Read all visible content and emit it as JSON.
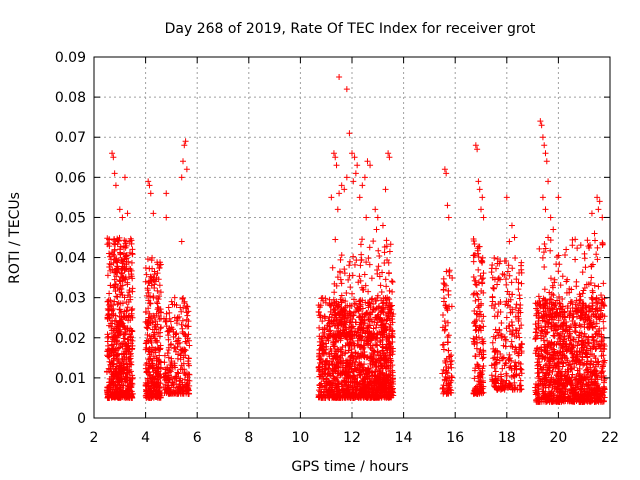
{
  "chart_data": {
    "type": "scatter",
    "title": "Day 268 of 2019, Rate Of TEC Index for receiver grot",
    "xlabel": "GPS time / hours",
    "ylabel": "ROTI / TECUs",
    "xlim": [
      2,
      22
    ],
    "ylim": [
      0,
      0.09
    ],
    "xticks": [
      "2",
      "4",
      "6",
      "8",
      "10",
      "12",
      "14",
      "16",
      "18",
      "20",
      "22"
    ],
    "yticks": [
      "0",
      "0.01",
      "0.02",
      "0.03",
      "0.04",
      "0.05",
      "0.06",
      "0.07",
      "0.08",
      "0.09"
    ],
    "grid": true,
    "marker": "+",
    "color": "#ff0000",
    "clusters": [
      {
        "x_range": [
          2.5,
          3.5
        ],
        "y_range": [
          0.005,
          0.045
        ],
        "n": 650,
        "seed": 11
      },
      {
        "x_range": [
          4.0,
          4.6
        ],
        "y_range": [
          0.005,
          0.04
        ],
        "n": 320,
        "seed": 12
      },
      {
        "x_range": [
          4.7,
          5.7
        ],
        "y_range": [
          0.006,
          0.03
        ],
        "n": 260,
        "seed": 13
      },
      {
        "x_range": [
          10.7,
          13.6
        ],
        "y_range": [
          0.005,
          0.03
        ],
        "n": 1300,
        "seed": 14
      },
      {
        "x_range": [
          11.2,
          13.6
        ],
        "y_range": [
          0.02,
          0.045
        ],
        "n": 200,
        "seed": 15
      },
      {
        "x_range": [
          15.5,
          15.9
        ],
        "y_range": [
          0.006,
          0.038
        ],
        "n": 90,
        "seed": 16
      },
      {
        "x_range": [
          16.7,
          17.1
        ],
        "y_range": [
          0.006,
          0.045
        ],
        "n": 160,
        "seed": 17
      },
      {
        "x_range": [
          17.4,
          18.6
        ],
        "y_range": [
          0.007,
          0.04
        ],
        "n": 260,
        "seed": 18
      },
      {
        "x_range": [
          19.1,
          21.8
        ],
        "y_range": [
          0.004,
          0.03
        ],
        "n": 1100,
        "seed": 19
      },
      {
        "x_range": [
          19.1,
          21.8
        ],
        "y_range": [
          0.025,
          0.045
        ],
        "n": 140,
        "seed": 20
      }
    ],
    "points": [
      [
        2.7,
        0.066
      ],
      [
        2.75,
        0.065
      ],
      [
        2.8,
        0.061
      ],
      [
        2.85,
        0.058
      ],
      [
        3.0,
        0.052
      ],
      [
        3.1,
        0.05
      ],
      [
        3.2,
        0.06
      ],
      [
        3.3,
        0.051
      ],
      [
        4.1,
        0.059
      ],
      [
        4.15,
        0.058
      ],
      [
        4.2,
        0.056
      ],
      [
        4.3,
        0.051
      ],
      [
        4.8,
        0.056
      ],
      [
        4.8,
        0.05
      ],
      [
        5.4,
        0.06
      ],
      [
        5.5,
        0.068
      ],
      [
        5.55,
        0.069
      ],
      [
        5.45,
        0.064
      ],
      [
        5.6,
        0.062
      ],
      [
        5.4,
        0.044
      ],
      [
        11.5,
        0.085
      ],
      [
        11.8,
        0.082
      ],
      [
        11.9,
        0.071
      ],
      [
        11.3,
        0.066
      ],
      [
        11.35,
        0.065
      ],
      [
        11.4,
        0.063
      ],
      [
        12.0,
        0.066
      ],
      [
        12.1,
        0.065
      ],
      [
        12.2,
        0.063
      ],
      [
        12.15,
        0.061
      ],
      [
        11.6,
        0.058
      ],
      [
        11.7,
        0.057
      ],
      [
        11.5,
        0.056
      ],
      [
        11.45,
        0.052
      ],
      [
        12.5,
        0.06
      ],
      [
        12.6,
        0.064
      ],
      [
        12.7,
        0.063
      ],
      [
        12.4,
        0.058
      ],
      [
        12.3,
        0.055
      ],
      [
        13.4,
        0.066
      ],
      [
        13.45,
        0.065
      ],
      [
        12.9,
        0.052
      ],
      [
        13.0,
        0.05
      ],
      [
        13.2,
        0.048
      ],
      [
        11.2,
        0.055
      ],
      [
        11.8,
        0.06
      ],
      [
        12.05,
        0.059
      ],
      [
        13.3,
        0.057
      ],
      [
        12.55,
        0.05
      ],
      [
        12.95,
        0.047
      ],
      [
        15.6,
        0.062
      ],
      [
        15.65,
        0.061
      ],
      [
        15.7,
        0.053
      ],
      [
        15.75,
        0.05
      ],
      [
        16.8,
        0.068
      ],
      [
        16.85,
        0.067
      ],
      [
        16.9,
        0.059
      ],
      [
        16.95,
        0.057
      ],
      [
        17.05,
        0.055
      ],
      [
        17.1,
        0.05
      ],
      [
        17.0,
        0.052
      ],
      [
        18.0,
        0.055
      ],
      [
        18.2,
        0.048
      ],
      [
        18.3,
        0.045
      ],
      [
        18.1,
        0.044
      ],
      [
        19.3,
        0.074
      ],
      [
        19.35,
        0.073
      ],
      [
        19.4,
        0.07
      ],
      [
        19.45,
        0.068
      ],
      [
        19.5,
        0.066
      ],
      [
        19.55,
        0.064
      ],
      [
        19.6,
        0.059
      ],
      [
        19.4,
        0.055
      ],
      [
        19.5,
        0.052
      ],
      [
        19.7,
        0.05
      ],
      [
        19.8,
        0.047
      ],
      [
        19.6,
        0.045
      ],
      [
        20.0,
        0.055
      ],
      [
        20.3,
        0.042
      ],
      [
        21.3,
        0.051
      ],
      [
        21.5,
        0.055
      ],
      [
        21.6,
        0.054
      ],
      [
        21.55,
        0.052
      ],
      [
        21.7,
        0.05
      ],
      [
        21.4,
        0.046
      ]
    ]
  }
}
